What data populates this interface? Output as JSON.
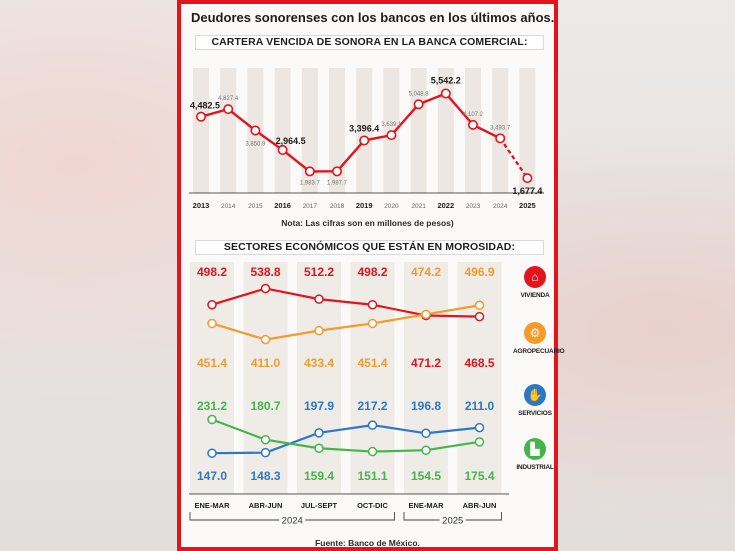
{
  "headline": "Deudores sonorenses con los bancos en los últimos años.",
  "note": "Nota: Las cifras son en millones de pesos)",
  "source": "Fuente: Banco de México.",
  "colors": {
    "red": "#e3141b",
    "orange": "#f59a2b",
    "blue": "#2c78c4",
    "green": "#43b649",
    "text": "#1d1d1d"
  },
  "legend": [
    {
      "label": "VIVIENDA",
      "icon": "house-icon",
      "color": "#e3141b",
      "glyph": "⌂"
    },
    {
      "label": "AGROPECUARIO",
      "icon": "tractor-icon",
      "color": "#f59a2b",
      "glyph": "⚙"
    },
    {
      "label": "SERVICIOS",
      "icon": "hand-icon",
      "color": "#2c78c4",
      "glyph": "✋"
    },
    {
      "label": "INDUSTRIAL",
      "icon": "factory-icon",
      "color": "#43b649",
      "glyph": "▙"
    }
  ],
  "chart_data": [
    {
      "type": "line",
      "title": "CARTERA VENCIDA DE SONORA EN LA BANCA COMERCIAL:",
      "categories": [
        "2013",
        "2014",
        "2015",
        "2016",
        "2017",
        "2018",
        "2019",
        "2020",
        "2021",
        "2022",
        "2023",
        "2024",
        "2025"
      ],
      "bold_categories": [
        "2013",
        "2016",
        "2019",
        "2022",
        "2025"
      ],
      "values": [
        4482.5,
        4827.4,
        3850.9,
        2964.5,
        1983.7,
        1987.7,
        3396.4,
        3639.1,
        5048.8,
        5542.2,
        4107.2,
        3493.7,
        1677.4
      ],
      "value_labels": [
        "4,482.5",
        "4,827.4",
        "3,850.9",
        "2,964.5",
        "1,983.7",
        "1,987.7",
        "3,396.4",
        "3,639.1",
        "5,048.8",
        "5,542.2",
        "4,107.2",
        "3,493.7",
        "1,677.4"
      ],
      "highlighted": [
        true,
        false,
        false,
        true,
        false,
        false,
        true,
        false,
        false,
        true,
        false,
        false,
        true
      ],
      "dashed_last_segment": true,
      "ylim": [
        1500,
        5700
      ],
      "color": "#e3141b"
    },
    {
      "type": "line",
      "title": "SECTORES ECONÓMICOS QUE ESTÁN EN MOROSIDAD:",
      "categories": [
        "ENE-MAR",
        "ABR-JUN",
        "JUL-SEPT",
        "OCT-DIC",
        "ENE-MAR",
        "ABR-JUN"
      ],
      "year_groups": [
        {
          "label": "2024",
          "start": 0,
          "end": 3
        },
        {
          "label": "2025",
          "start": 4,
          "end": 5
        }
      ],
      "series": [
        {
          "name": "VIVIENDA",
          "color": "#e3141b",
          "values": [
            498.2,
            538.8,
            512.2,
            498.2,
            471.2,
            468.5
          ],
          "labels": [
            "498.2",
            "538.8",
            "512.2",
            "498.2",
            "471.2",
            "468.5"
          ]
        },
        {
          "name": "AGROPECUARIO",
          "color": "#f59a2b",
          "values": [
            451.4,
            411.0,
            433.4,
            451.4,
            474.2,
            496.9
          ],
          "labels": [
            "451.4",
            "411.0",
            "433.4",
            "451.4",
            "474.2",
            "496.9"
          ]
        },
        {
          "name": "SERVICIOS",
          "color": "#2c78c4",
          "values": [
            147.0,
            148.3,
            197.9,
            217.2,
            196.8,
            211.0
          ],
          "labels": [
            "147.0",
            "148.3",
            "197.9",
            "217.2",
            "196.8",
            "211.0"
          ]
        },
        {
          "name": "INDUSTRIAL",
          "color": "#43b649",
          "values": [
            231.2,
            180.7,
            159.4,
            151.1,
            154.5,
            175.4
          ],
          "labels": [
            "231.2",
            "180.7",
            "159.4",
            "151.1",
            "154.5",
            "175.4"
          ]
        }
      ],
      "top_labels": [
        {
          "text": "498.2",
          "color": "#e3141b"
        },
        {
          "text": "538.8",
          "color": "#e3141b"
        },
        {
          "text": "512.2",
          "color": "#e3141b"
        },
        {
          "text": "498.2",
          "color": "#e3141b"
        },
        {
          "text": "474.2",
          "color": "#f59a2b"
        },
        {
          "text": "496.9",
          "color": "#f59a2b"
        }
      ],
      "mid_labels": [
        {
          "text": "451.4",
          "color": "#f59a2b"
        },
        {
          "text": "411.0",
          "color": "#f59a2b"
        },
        {
          "text": "433.4",
          "color": "#f59a2b"
        },
        {
          "text": "451.4",
          "color": "#f59a2b"
        },
        {
          "text": "471.2",
          "color": "#e3141b"
        },
        {
          "text": "468.5",
          "color": "#e3141b"
        }
      ],
      "lower_labels": [
        {
          "text": "231.2",
          "color": "#43b649"
        },
        {
          "text": "180.7",
          "color": "#43b649"
        },
        {
          "text": "197.9",
          "color": "#2c78c4"
        },
        {
          "text": "217.2",
          "color": "#2c78c4"
        },
        {
          "text": "196.8",
          "color": "#2c78c4"
        },
        {
          "text": "211.0",
          "color": "#2c78c4"
        }
      ],
      "bottom_labels": [
        {
          "text": "147.0",
          "color": "#2c78c4"
        },
        {
          "text": "148.3",
          "color": "#2c78c4"
        },
        {
          "text": "159.4",
          "color": "#43b649"
        },
        {
          "text": "151.1",
          "color": "#43b649"
        },
        {
          "text": "154.5",
          "color": "#43b649"
        },
        {
          "text": "175.4",
          "color": "#43b649"
        }
      ]
    }
  ]
}
